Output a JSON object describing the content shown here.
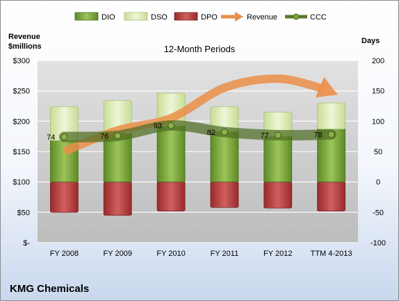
{
  "company": "KMG Chemicals",
  "chart_data": {
    "type": "bar",
    "title": "12-Month Periods",
    "left_axis_label": [
      "Revenue",
      "$millions"
    ],
    "right_axis_label": "Days",
    "categories": [
      "FY 2008",
      "FY 2009",
      "FY 2010",
      "FY 2011",
      "FY 2012",
      "TTM 4-2013"
    ],
    "left_axis": {
      "min": 0,
      "max": 300,
      "step": 50,
      "tick_labels": [
        "$-",
        "$50",
        "$100",
        "$150",
        "$200",
        "$250",
        "$300"
      ]
    },
    "right_axis": {
      "min": -100,
      "max": 200,
      "step": 50,
      "tick_labels": [
        "-100",
        "-50",
        "0",
        "50",
        "100",
        "150",
        "200"
      ]
    },
    "legend_position": "top",
    "legend": [
      {
        "name": "DIO",
        "kind": "bar",
        "color": "#6e9a34"
      },
      {
        "name": "DSO",
        "kind": "bar",
        "color": "#dcebb7"
      },
      {
        "name": "DPO",
        "kind": "bar",
        "color": "#b23a3a"
      },
      {
        "name": "Revenue",
        "kind": "arrow",
        "color": "#eb8e48"
      },
      {
        "name": "CCC",
        "kind": "line",
        "color": "#5a7a2a"
      }
    ],
    "series": [
      {
        "name": "DIO",
        "axis": "right",
        "values": [
          68,
          80,
          92,
          83,
          75,
          87
        ]
      },
      {
        "name": "DSO",
        "axis": "right",
        "values": [
          56,
          54,
          54,
          41,
          40,
          43
        ]
      },
      {
        "name": "DPO",
        "axis": "right",
        "values": [
          -50,
          -55,
          -48,
          -42,
          -43,
          -48
        ]
      },
      {
        "name": "CCC",
        "axis": "right",
        "values": [
          74,
          76,
          93,
          82,
          77,
          78
        ],
        "labels": [
          "74",
          "76",
          "93",
          "82",
          "77",
          "78"
        ]
      },
      {
        "name": "Revenue",
        "axis": "left",
        "values": [
          150,
          185,
          205,
          255,
          270,
          248
        ]
      }
    ],
    "grid": true
  }
}
